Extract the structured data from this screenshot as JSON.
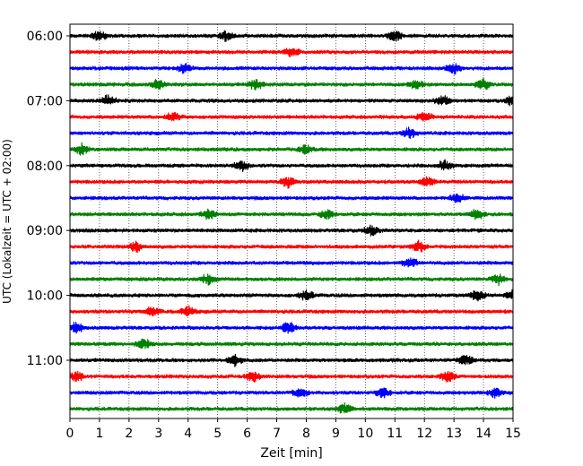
{
  "chart_data": {
    "type": "line",
    "subtype": "helicorder",
    "xlabel": "Zeit  [min]",
    "ylabel": "UTC (Lokalzeit = UTC + 02:00)",
    "xlim": [
      0,
      15
    ],
    "x_ticks": [
      0,
      1,
      2,
      3,
      4,
      5,
      6,
      7,
      8,
      9,
      10,
      11,
      12,
      13,
      14,
      15
    ],
    "y_tick_labels": [
      "06:00",
      "07:00",
      "08:00",
      "09:00",
      "10:00",
      "11:00"
    ],
    "trace_interval_min": 15,
    "trace_start_times": [
      "06:00",
      "06:15",
      "06:30",
      "06:45",
      "07:00",
      "07:15",
      "07:30",
      "07:45",
      "08:00",
      "08:15",
      "08:30",
      "08:45",
      "09:00",
      "09:15",
      "09:30",
      "09:45",
      "10:00",
      "10:15",
      "10:30",
      "10:45",
      "11:00",
      "11:15",
      "11:30",
      "11:45"
    ],
    "colors": [
      "#000000",
      "#ff0000",
      "#0000ff",
      "#008000"
    ],
    "grid_x": true,
    "grid_style": "dotted",
    "series": [
      {
        "start": "06:00",
        "events_min": [
          1.0,
          5.3,
          11.0
        ]
      },
      {
        "start": "06:15",
        "events_min": [
          7.5
        ]
      },
      {
        "start": "06:30",
        "events_min": [
          3.9,
          13.0
        ]
      },
      {
        "start": "06:45",
        "events_min": [
          3.0,
          6.3,
          11.7,
          14.0
        ]
      },
      {
        "start": "07:00",
        "events_min": [
          1.3,
          12.6,
          15.0
        ]
      },
      {
        "start": "07:15",
        "events_min": [
          3.5,
          12.0
        ]
      },
      {
        "start": "07:30",
        "events_min": [
          11.5
        ]
      },
      {
        "start": "07:45",
        "events_min": [
          0.4,
          8.0
        ]
      },
      {
        "start": "08:00",
        "events_min": [
          5.8,
          12.7
        ]
      },
      {
        "start": "08:15",
        "events_min": [
          7.4,
          12.1
        ]
      },
      {
        "start": "08:30",
        "events_min": [
          13.1
        ]
      },
      {
        "start": "08:45",
        "events_min": [
          4.7,
          8.7,
          13.8
        ]
      },
      {
        "start": "09:00",
        "events_min": [
          10.2
        ]
      },
      {
        "start": "09:15",
        "events_min": [
          2.2,
          11.8
        ]
      },
      {
        "start": "09:30",
        "events_min": [
          11.5
        ]
      },
      {
        "start": "09:45",
        "events_min": [
          4.7,
          14.5
        ]
      },
      {
        "start": "10:00",
        "events_min": [
          8.0,
          13.8,
          15.0
        ]
      },
      {
        "start": "10:15",
        "events_min": [
          2.8,
          4.0
        ]
      },
      {
        "start": "10:30",
        "events_min": [
          0.2,
          7.4
        ]
      },
      {
        "start": "10:45",
        "events_min": [
          2.5
        ]
      },
      {
        "start": "11:00",
        "events_min": [
          5.6,
          13.4
        ]
      },
      {
        "start": "11:15",
        "events_min": [
          0.2,
          6.2,
          12.8
        ]
      },
      {
        "start": "11:30",
        "events_min": [
          7.8,
          10.6,
          14.4
        ]
      },
      {
        "start": "11:45",
        "events_min": [
          9.3
        ]
      }
    ]
  }
}
